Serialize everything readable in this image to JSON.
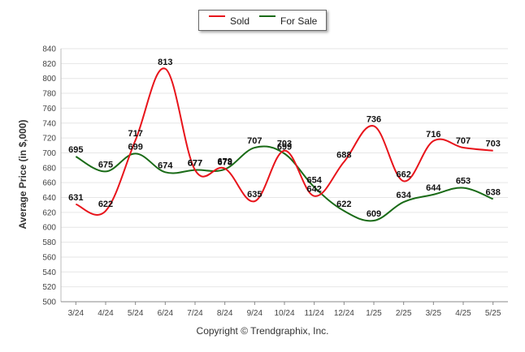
{
  "chart_data": {
    "type": "line",
    "categories": [
      "3/24",
      "4/24",
      "5/24",
      "6/24",
      "7/24",
      "8/24",
      "9/24",
      "10/24",
      "11/24",
      "12/24",
      "1/25",
      "2/25",
      "3/25",
      "4/25",
      "5/25"
    ],
    "series": [
      {
        "name": "Sold",
        "color": "#e8141b",
        "values": [
          631,
          622,
          717,
          813,
          677,
          679,
          635,
          703,
          642,
          688,
          736,
          662,
          716,
          707,
          703
        ]
      },
      {
        "name": "For Sale",
        "color": "#1a6b17",
        "values": [
          695,
          675,
          699,
          674,
          677,
          678,
          707,
          699,
          654,
          622,
          609,
          634,
          644,
          653,
          638
        ]
      }
    ],
    "ylabel": "Average Price (in $,000)",
    "ylim": [
      500,
      840
    ],
    "yticks": [
      500,
      520,
      540,
      560,
      580,
      600,
      620,
      640,
      660,
      680,
      700,
      720,
      740,
      760,
      780,
      800,
      820,
      840
    ],
    "grid": true,
    "legend_position": "top-center"
  },
  "footer": {
    "copyright": "Copyright © Trendgraphix, Inc."
  }
}
